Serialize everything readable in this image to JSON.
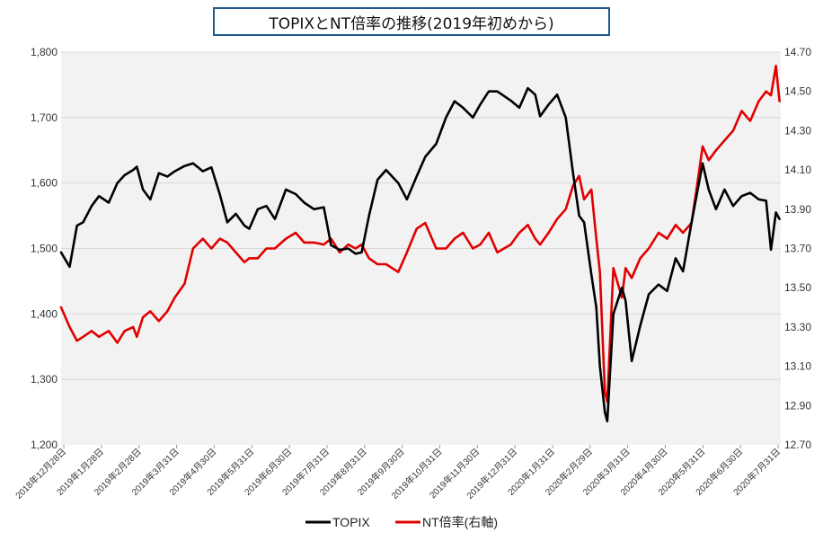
{
  "chart_data": {
    "type": "line",
    "title": "TOPIXとNT倍率の推移(2019年初めから)",
    "x_tick_labels": [
      "2018年12月28日",
      "2019年1月28日",
      "2019年2月28日",
      "2019年3月31日",
      "2019年4月30日",
      "2019年5月31日",
      "2019年6月30日",
      "2019年7月31日",
      "2019年8月31日",
      "2019年9月30日",
      "2019年10月31日",
      "2019年11月30日",
      "2019年12月31日",
      "2020年1月31日",
      "2020年2月29日",
      "2020年3月31日",
      "2020年4月30日",
      "2020年5月31日",
      "2020年6月30日",
      "2020年7月31日"
    ],
    "y_left": {
      "min": 1200,
      "max": 1800,
      "ticks": [
        "1,200",
        "1,300",
        "1,400",
        "1,500",
        "1,600",
        "1,700",
        "1,800"
      ]
    },
    "y_right": {
      "min": 12.7,
      "max": 14.7,
      "ticks": [
        "12.70",
        "12.90",
        "13.10",
        "13.30",
        "13.50",
        "13.70",
        "13.90",
        "14.10",
        "14.30",
        "14.50",
        "14.70"
      ]
    },
    "grid": "horizontal",
    "legend_position": "bottom",
    "series": [
      {
        "name": "TOPIX",
        "axis": "left",
        "color": "#000000",
        "x": [
          "2018-12-28",
          "2019-01-04",
          "2019-01-10",
          "2019-01-15",
          "2019-01-22",
          "2019-01-28",
          "2019-02-05",
          "2019-02-12",
          "2019-02-18",
          "2019-02-25",
          "2019-02-28",
          "2019-03-05",
          "2019-03-11",
          "2019-03-18",
          "2019-03-25",
          "2019-03-31",
          "2019-04-08",
          "2019-04-15",
          "2019-04-23",
          "2019-04-30",
          "2019-05-07",
          "2019-05-13",
          "2019-05-20",
          "2019-05-27",
          "2019-05-31",
          "2019-06-07",
          "2019-06-14",
          "2019-06-21",
          "2019-06-30",
          "2019-07-08",
          "2019-07-15",
          "2019-07-23",
          "2019-07-31",
          "2019-08-06",
          "2019-08-13",
          "2019-08-20",
          "2019-08-26",
          "2019-08-31",
          "2019-09-06",
          "2019-09-13",
          "2019-09-20",
          "2019-09-30",
          "2019-10-07",
          "2019-10-15",
          "2019-10-22",
          "2019-10-31",
          "2019-11-08",
          "2019-11-15",
          "2019-11-22",
          "2019-11-30",
          "2019-12-06",
          "2019-12-13",
          "2019-12-20",
          "2019-12-31",
          "2020-01-07",
          "2020-01-14",
          "2020-01-20",
          "2020-01-24",
          "2020-01-31",
          "2020-02-07",
          "2020-02-14",
          "2020-02-20",
          "2020-02-25",
          "2020-02-29",
          "2020-03-06",
          "2020-03-10",
          "2020-03-13",
          "2020-03-17",
          "2020-03-19",
          "2020-03-24",
          "2020-03-31",
          "2020-04-03",
          "2020-04-08",
          "2020-04-15",
          "2020-04-22",
          "2020-04-30",
          "2020-05-07",
          "2020-05-14",
          "2020-05-20",
          "2020-05-27",
          "2020-05-31",
          "2020-06-05",
          "2020-06-10",
          "2020-06-16",
          "2020-06-23",
          "2020-06-30",
          "2020-07-07",
          "2020-07-14",
          "2020-07-21",
          "2020-07-27",
          "2020-07-31",
          "2020-08-04",
          "2020-08-07"
        ],
        "values": [
          1494,
          1472,
          1535,
          1540,
          1565,
          1580,
          1570,
          1600,
          1612,
          1620,
          1625,
          1590,
          1575,
          1615,
          1610,
          1618,
          1626,
          1630,
          1618,
          1624,
          1582,
          1540,
          1553,
          1535,
          1530,
          1560,
          1565,
          1545,
          1590,
          1583,
          1570,
          1560,
          1563,
          1505,
          1498,
          1500,
          1492,
          1494,
          1550,
          1605,
          1620,
          1600,
          1575,
          1610,
          1640,
          1660,
          1700,
          1725,
          1715,
          1700,
          1720,
          1740,
          1740,
          1726,
          1715,
          1745,
          1735,
          1702,
          1720,
          1735,
          1700,
          1615,
          1550,
          1540,
          1460,
          1410,
          1320,
          1250,
          1236,
          1400,
          1440,
          1420,
          1328,
          1382,
          1430,
          1445,
          1435,
          1485,
          1465,
          1540,
          1580,
          1630,
          1590,
          1560,
          1590,
          1565,
          1580,
          1585,
          1575,
          1573,
          1498,
          1555,
          1545
        ]
      },
      {
        "name": "NT倍率(右軸)",
        "axis": "right",
        "color": "#e00000",
        "x": [
          "2018-12-28",
          "2019-01-04",
          "2019-01-10",
          "2019-01-15",
          "2019-01-22",
          "2019-01-28",
          "2019-02-05",
          "2019-02-12",
          "2019-02-18",
          "2019-02-25",
          "2019-02-28",
          "2019-03-05",
          "2019-03-11",
          "2019-03-18",
          "2019-03-25",
          "2019-03-31",
          "2019-04-08",
          "2019-04-15",
          "2019-04-23",
          "2019-04-30",
          "2019-05-07",
          "2019-05-13",
          "2019-05-20",
          "2019-05-27",
          "2019-05-31",
          "2019-06-07",
          "2019-06-14",
          "2019-06-21",
          "2019-06-30",
          "2019-07-08",
          "2019-07-15",
          "2019-07-23",
          "2019-07-31",
          "2019-08-06",
          "2019-08-13",
          "2019-08-20",
          "2019-08-26",
          "2019-08-31",
          "2019-09-06",
          "2019-09-13",
          "2019-09-20",
          "2019-09-30",
          "2019-10-07",
          "2019-10-15",
          "2019-10-22",
          "2019-10-31",
          "2019-11-08",
          "2019-11-15",
          "2019-11-22",
          "2019-11-30",
          "2019-12-06",
          "2019-12-13",
          "2019-12-20",
          "2019-12-31",
          "2020-01-07",
          "2020-01-14",
          "2020-01-20",
          "2020-01-24",
          "2020-01-31",
          "2020-02-07",
          "2020-02-14",
          "2020-02-20",
          "2020-02-25",
          "2020-02-29",
          "2020-03-06",
          "2020-03-10",
          "2020-03-13",
          "2020-03-17",
          "2020-03-19",
          "2020-03-24",
          "2020-03-31",
          "2020-04-03",
          "2020-04-08",
          "2020-04-15",
          "2020-04-22",
          "2020-04-30",
          "2020-05-07",
          "2020-05-14",
          "2020-05-20",
          "2020-05-27",
          "2020-05-31",
          "2020-06-05",
          "2020-06-10",
          "2020-06-16",
          "2020-06-23",
          "2020-06-30",
          "2020-07-07",
          "2020-07-14",
          "2020-07-21",
          "2020-07-27",
          "2020-07-31",
          "2020-08-04",
          "2020-08-07"
        ],
        "values": [
          13.4,
          13.3,
          13.23,
          13.25,
          13.28,
          13.25,
          13.28,
          13.22,
          13.28,
          13.3,
          13.25,
          13.35,
          13.38,
          13.33,
          13.38,
          13.45,
          13.52,
          13.7,
          13.75,
          13.7,
          13.75,
          13.73,
          13.68,
          13.63,
          13.65,
          13.65,
          13.7,
          13.7,
          13.75,
          13.78,
          13.73,
          13.73,
          13.72,
          13.75,
          13.68,
          13.72,
          13.7,
          13.72,
          13.65,
          13.62,
          13.62,
          13.58,
          13.68,
          13.8,
          13.83,
          13.7,
          13.7,
          13.75,
          13.78,
          13.7,
          13.72,
          13.78,
          13.68,
          13.72,
          13.78,
          13.82,
          13.75,
          13.72,
          13.78,
          13.85,
          13.9,
          14.02,
          14.07,
          13.95,
          14.0,
          13.75,
          13.58,
          12.97,
          12.92,
          13.6,
          13.45,
          13.6,
          13.55,
          13.65,
          13.7,
          13.78,
          13.75,
          13.82,
          13.78,
          13.83,
          14.0,
          14.22,
          14.15,
          14.2,
          14.25,
          14.3,
          14.4,
          14.35,
          14.45,
          14.5,
          14.48,
          14.63,
          14.45
        ]
      }
    ]
  }
}
